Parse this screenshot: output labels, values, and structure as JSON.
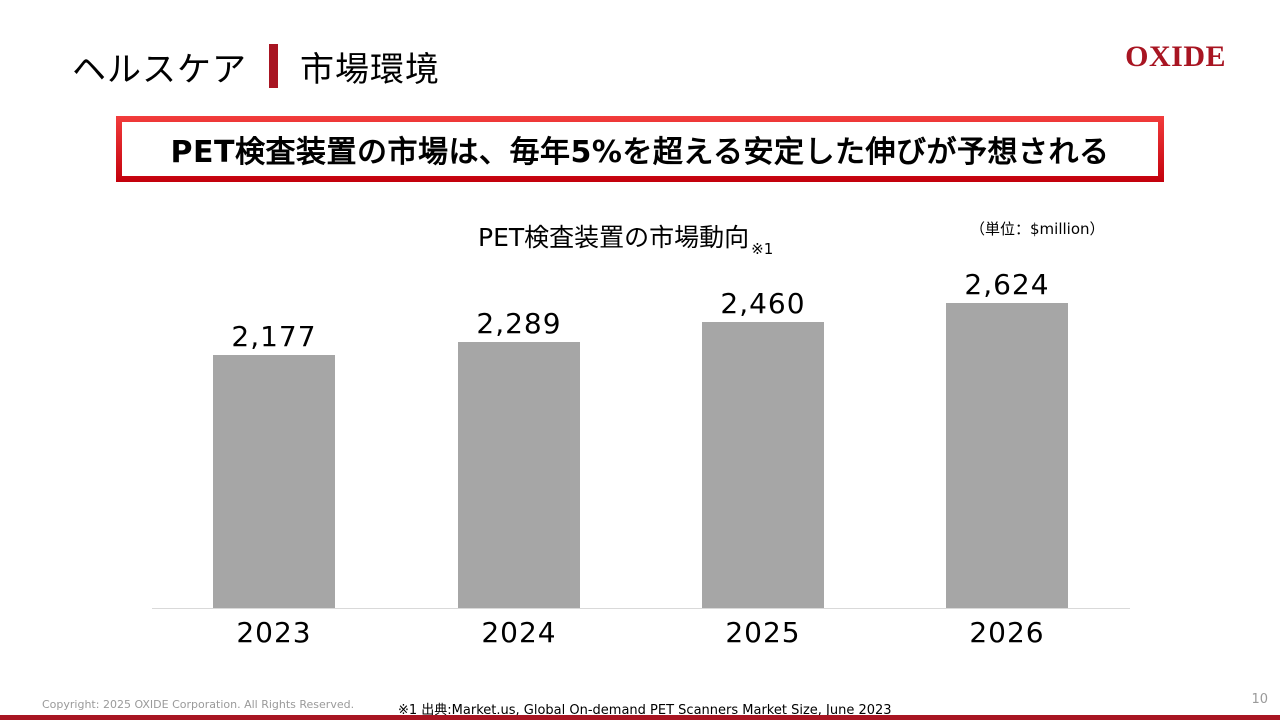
{
  "header": {
    "section": "ヘルスケア",
    "title": "市場環境",
    "divider_color": "#a81522"
  },
  "logo": {
    "text": "OXIDE",
    "color": "#a81522"
  },
  "headline": {
    "text": "PET検査装置の市場は、毎年5%を超える安定した伸びが予想される",
    "border_color": "#e01f26"
  },
  "chart": {
    "title": "PET検査装置の市場動向",
    "title_note": "※1",
    "unit": "（単位：$million）"
  },
  "chart_data": {
    "type": "bar",
    "title": "PET検査装置の市場動向※1",
    "categories": [
      "2023",
      "2024",
      "2025",
      "2026"
    ],
    "values": [
      2177,
      2289,
      2460,
      2624
    ],
    "value_labels": [
      "2,177",
      "2,289",
      "2,460",
      "2,624"
    ],
    "xlabel": "",
    "ylabel": "$million",
    "unit_label": "（単位：$million）",
    "bar_color": "#a6a6a6",
    "grid": false,
    "legend": null,
    "data_labels": true
  },
  "footer": {
    "copyright": "Copyright: 2025 OXIDE Corporation. All Rights Reserved.",
    "source": "※1 出典:Market.us, Global On-demand PET Scanners Market Size, June 2023",
    "page_number": "10"
  }
}
